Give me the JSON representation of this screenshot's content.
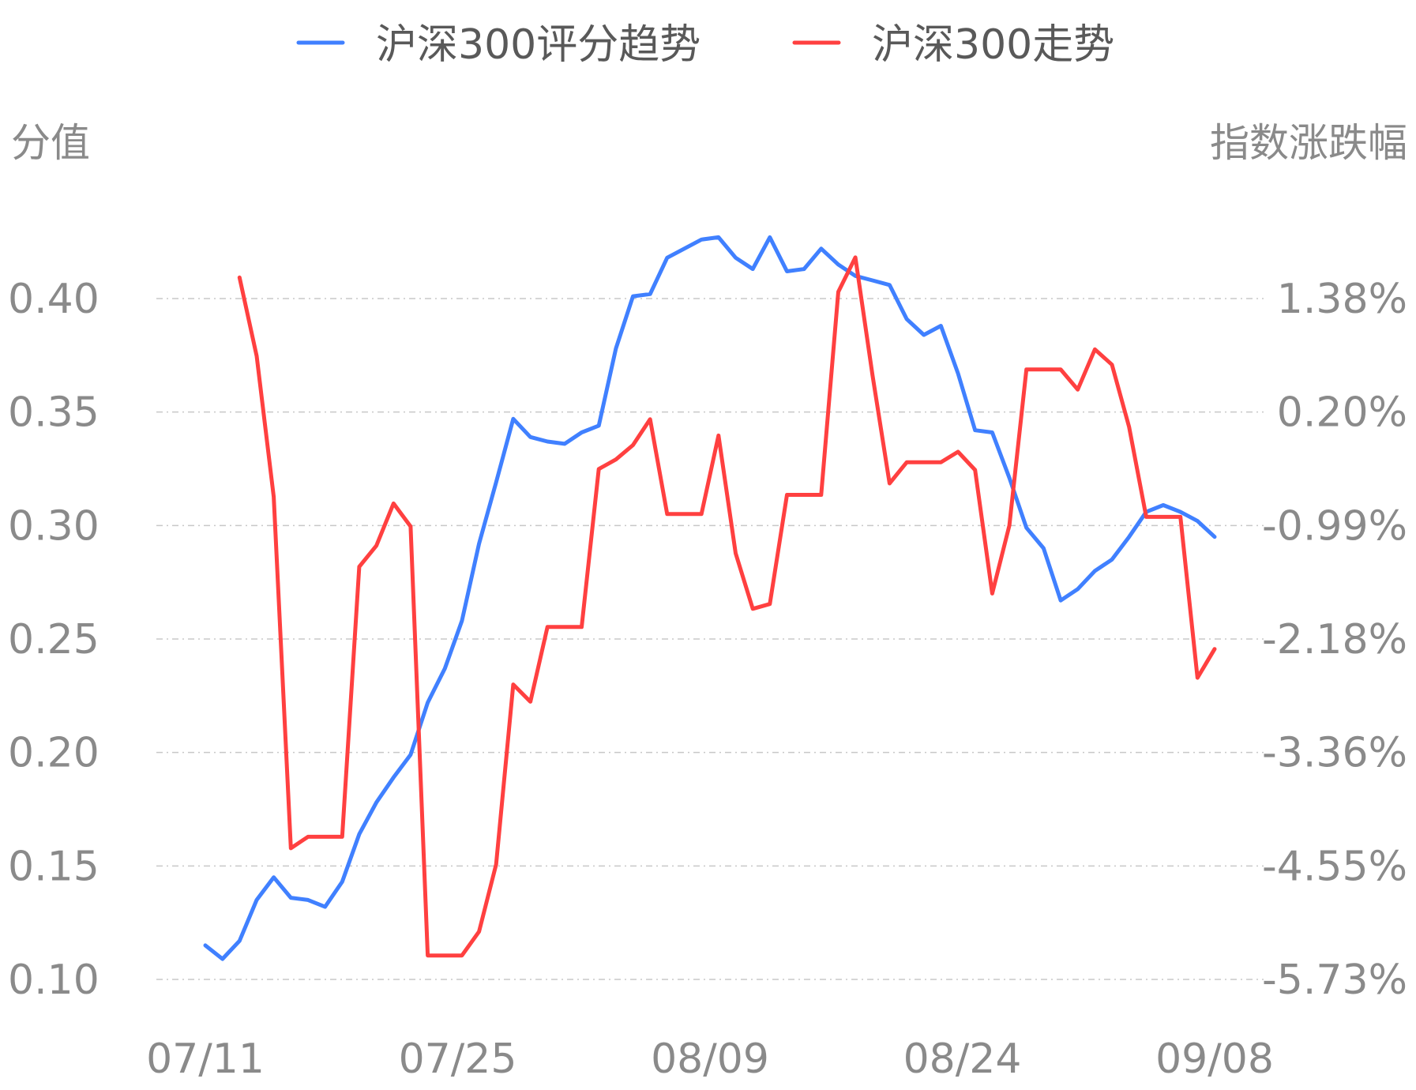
{
  "chart_data": {
    "type": "line",
    "legend": {
      "placement": "top-center",
      "items": [
        {
          "label": "沪深300评分趋势",
          "color": "#4080ff"
        },
        {
          "label": "沪深300走势",
          "color": "#ff4040"
        }
      ]
    },
    "y_left": {
      "label": "分值",
      "ticks": [
        "0.10",
        "0.15",
        "0.20",
        "0.25",
        "0.30",
        "0.35",
        "0.40"
      ],
      "range": [
        0.1,
        0.4
      ]
    },
    "y_right": {
      "label": "指数涨跌幅",
      "ticks": [
        "-5.73%",
        "-4.55%",
        "-3.36%",
        "-2.18%",
        "-0.99%",
        "0.20%",
        "1.38%"
      ],
      "range": [
        -5.73,
        1.38
      ]
    },
    "x_ticks": [
      "07/11",
      "07/25",
      "08/09",
      "08/24",
      "09/08"
    ],
    "grid": "horizontal dashed",
    "series": [
      {
        "name": "沪深300评分趋势",
        "axis": "left",
        "color": "#4080ff",
        "values": [
          0.115,
          0.109,
          0.117,
          0.135,
          0.145,
          0.136,
          0.135,
          0.132,
          0.143,
          0.164,
          0.178,
          0.189,
          0.199,
          0.222,
          0.237,
          0.258,
          0.292,
          0.319,
          0.347,
          0.339,
          0.337,
          0.336,
          0.341,
          0.344,
          0.378,
          0.401,
          0.402,
          0.418,
          0.422,
          0.426,
          0.427,
          0.418,
          0.413,
          0.427,
          0.412,
          0.413,
          0.422,
          0.415,
          0.41,
          0.408,
          0.406,
          0.391,
          0.384,
          0.388,
          0.367,
          0.342,
          0.341,
          0.321,
          0.299,
          0.29,
          0.267,
          0.272,
          0.28,
          0.285,
          0.295,
          0.306,
          0.309,
          0.306,
          0.302,
          0.295
        ]
      },
      {
        "name": "沪深300走势",
        "axis": "right",
        "color": "#ff4040",
        "values": [
          null,
          null,
          1.6,
          0.78,
          -0.69,
          -4.36,
          -4.24,
          -4.24,
          -4.24,
          -1.42,
          -1.2,
          -0.76,
          -1.0,
          -5.48,
          -5.48,
          -5.48,
          -5.23,
          -4.53,
          -2.65,
          -2.83,
          -2.05,
          -2.05,
          -2.05,
          -0.4,
          -0.3,
          -0.15,
          0.12,
          -0.87,
          -0.87,
          -0.87,
          -0.05,
          -1.28,
          -1.86,
          -1.81,
          -0.67,
          -0.67,
          -0.67,
          1.45,
          1.81,
          0.58,
          -0.55,
          -0.33,
          -0.33,
          -0.33,
          -0.22,
          -0.41,
          -1.7,
          -0.99,
          0.64,
          0.64,
          0.64,
          0.43,
          0.85,
          0.69,
          0.04,
          -0.9,
          -0.9,
          -0.9,
          -2.58,
          -2.28
        ]
      }
    ]
  }
}
